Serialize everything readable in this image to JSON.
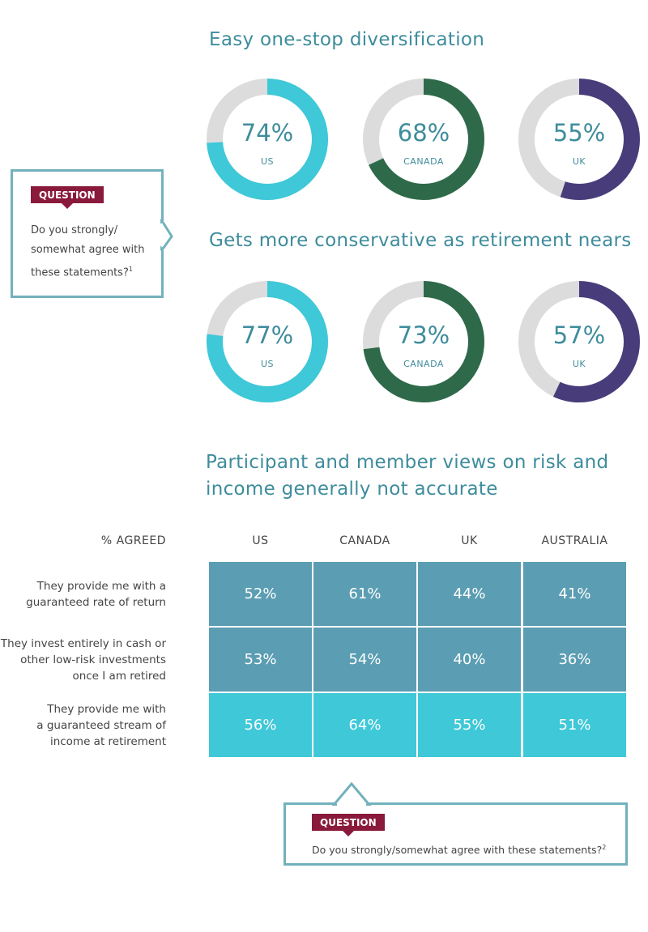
{
  "chart_data": [
    {
      "type": "pie",
      "title": "Easy one-stop diversification",
      "categories": [
        "US",
        "CANADA",
        "UK"
      ],
      "values": [
        74,
        68,
        55
      ],
      "unit": "%",
      "colors": [
        "#3ec8d8",
        "#2e6a4a",
        "#483d7a"
      ],
      "remainder_color": "#dcdcdc"
    },
    {
      "type": "pie",
      "title": "Gets more conservative as retirement nears",
      "categories": [
        "US",
        "CANADA",
        "UK"
      ],
      "values": [
        77,
        73,
        57
      ],
      "unit": "%",
      "colors": [
        "#3ec8d8",
        "#2e6a4a",
        "#483d7a"
      ],
      "remainder_color": "#dcdcdc"
    },
    {
      "type": "table",
      "title": "Participant and member views on risk and income generally not accurate",
      "corner_label": "% AGREED",
      "columns": [
        "US",
        "CANADA",
        "UK",
        "AUSTRALIA"
      ],
      "rows": [
        {
          "label": "They provide me with a guaranteed rate of return",
          "label_lines": [
            "They provide me with a",
            "guaranteed rate of return"
          ],
          "values": [
            "52%",
            "61%",
            "44%",
            "41%"
          ],
          "color": "#5b9db3"
        },
        {
          "label": "They invest entirely in cash or other low-risk investments once I am retired",
          "label_lines": [
            "They invest entirely in cash or",
            "other low-risk investments",
            "once I am retired"
          ],
          "values": [
            "53%",
            "54%",
            "40%",
            "36%"
          ],
          "color": "#5b9db3"
        },
        {
          "label": "They provide me with a guaranteed stream of income at retirement",
          "label_lines": [
            "They provide me with",
            "a guaranteed stream of",
            "income at retirement"
          ],
          "values": [
            "56%",
            "64%",
            "55%",
            "51%"
          ],
          "color": "#3ec8d8"
        }
      ]
    }
  ],
  "question1": {
    "tag": "QUESTION",
    "lines": [
      "Do you strongly/",
      "somewhat agree with",
      "these statements?"
    ],
    "footnote": "1"
  },
  "question2": {
    "tag": "QUESTION",
    "text": "Do you strongly/somewhat agree with these statements?",
    "footnote": "2"
  }
}
